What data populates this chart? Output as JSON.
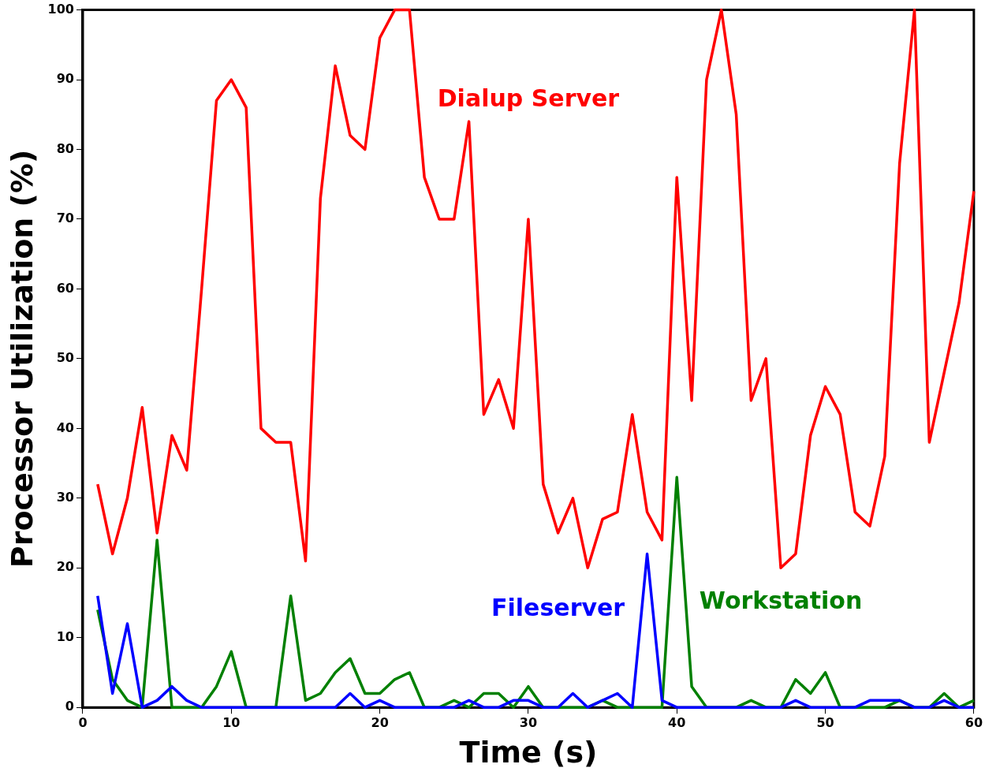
{
  "chart_data": {
    "type": "line",
    "xlabel": "Time (s)",
    "ylabel": "Processor Utilization (%)",
    "x": [
      1,
      2,
      3,
      4,
      5,
      6,
      7,
      8,
      9,
      10,
      11,
      12,
      13,
      14,
      15,
      16,
      17,
      18,
      19,
      20,
      21,
      22,
      23,
      24,
      25,
      26,
      27,
      28,
      29,
      30,
      31,
      32,
      33,
      34,
      35,
      36,
      37,
      38,
      39,
      40,
      41,
      42,
      43,
      44,
      45,
      46,
      47,
      48,
      49,
      50,
      51,
      52,
      53,
      54,
      55,
      56,
      57,
      58,
      59,
      60
    ],
    "series": [
      {
        "name": "Dialup Server",
        "color": "#ff0000",
        "values": [
          32,
          22,
          30,
          43,
          25,
          39,
          34,
          60,
          87,
          90,
          86,
          40,
          38,
          38,
          21,
          73,
          92,
          82,
          80,
          96,
          100,
          100,
          76,
          70,
          70,
          84,
          42,
          47,
          40,
          70,
          32,
          25,
          30,
          20,
          27,
          28,
          42,
          28,
          24,
          76,
          44,
          90,
          100,
          85,
          44,
          50,
          20,
          22,
          39,
          46,
          42,
          28,
          26,
          36,
          78,
          100,
          38,
          48,
          58,
          74
        ]
      },
      {
        "name": "Fileserver",
        "color": "#0000ff",
        "values": [
          16,
          2,
          12,
          0,
          1,
          3,
          1,
          0,
          0,
          0,
          0,
          0,
          0,
          0,
          0,
          0,
          0,
          2,
          0,
          1,
          0,
          0,
          0,
          0,
          0,
          1,
          0,
          0,
          1,
          1,
          0,
          0,
          2,
          0,
          1,
          2,
          0,
          22,
          1,
          0,
          0,
          0,
          0,
          0,
          0,
          0,
          0,
          1,
          0,
          0,
          0,
          0,
          1,
          1,
          1,
          0,
          0,
          1,
          0,
          0
        ]
      },
      {
        "name": "Workstation",
        "color": "#008000",
        "values": [
          14,
          4,
          1,
          0,
          24,
          0,
          0,
          0,
          3,
          8,
          0,
          0,
          0,
          16,
          1,
          2,
          5,
          7,
          2,
          2,
          4,
          5,
          0,
          0,
          1,
          0,
          2,
          2,
          0,
          3,
          0,
          0,
          0,
          0,
          1,
          0,
          0,
          0,
          0,
          33,
          3,
          0,
          0,
          0,
          1,
          0,
          0,
          4,
          2,
          5,
          0,
          0,
          0,
          0,
          1,
          0,
          0,
          2,
          0,
          1
        ]
      }
    ],
    "xlim": [
      0,
      60
    ],
    "xticks": [
      0,
      10,
      20,
      30,
      40,
      50,
      60
    ],
    "ylim": [
      0,
      100
    ],
    "yticks": [
      0,
      10,
      20,
      30,
      40,
      50,
      60,
      70,
      80,
      90,
      100
    ],
    "grid": false,
    "legend": false,
    "marker": "none",
    "line_style": "solid"
  }
}
